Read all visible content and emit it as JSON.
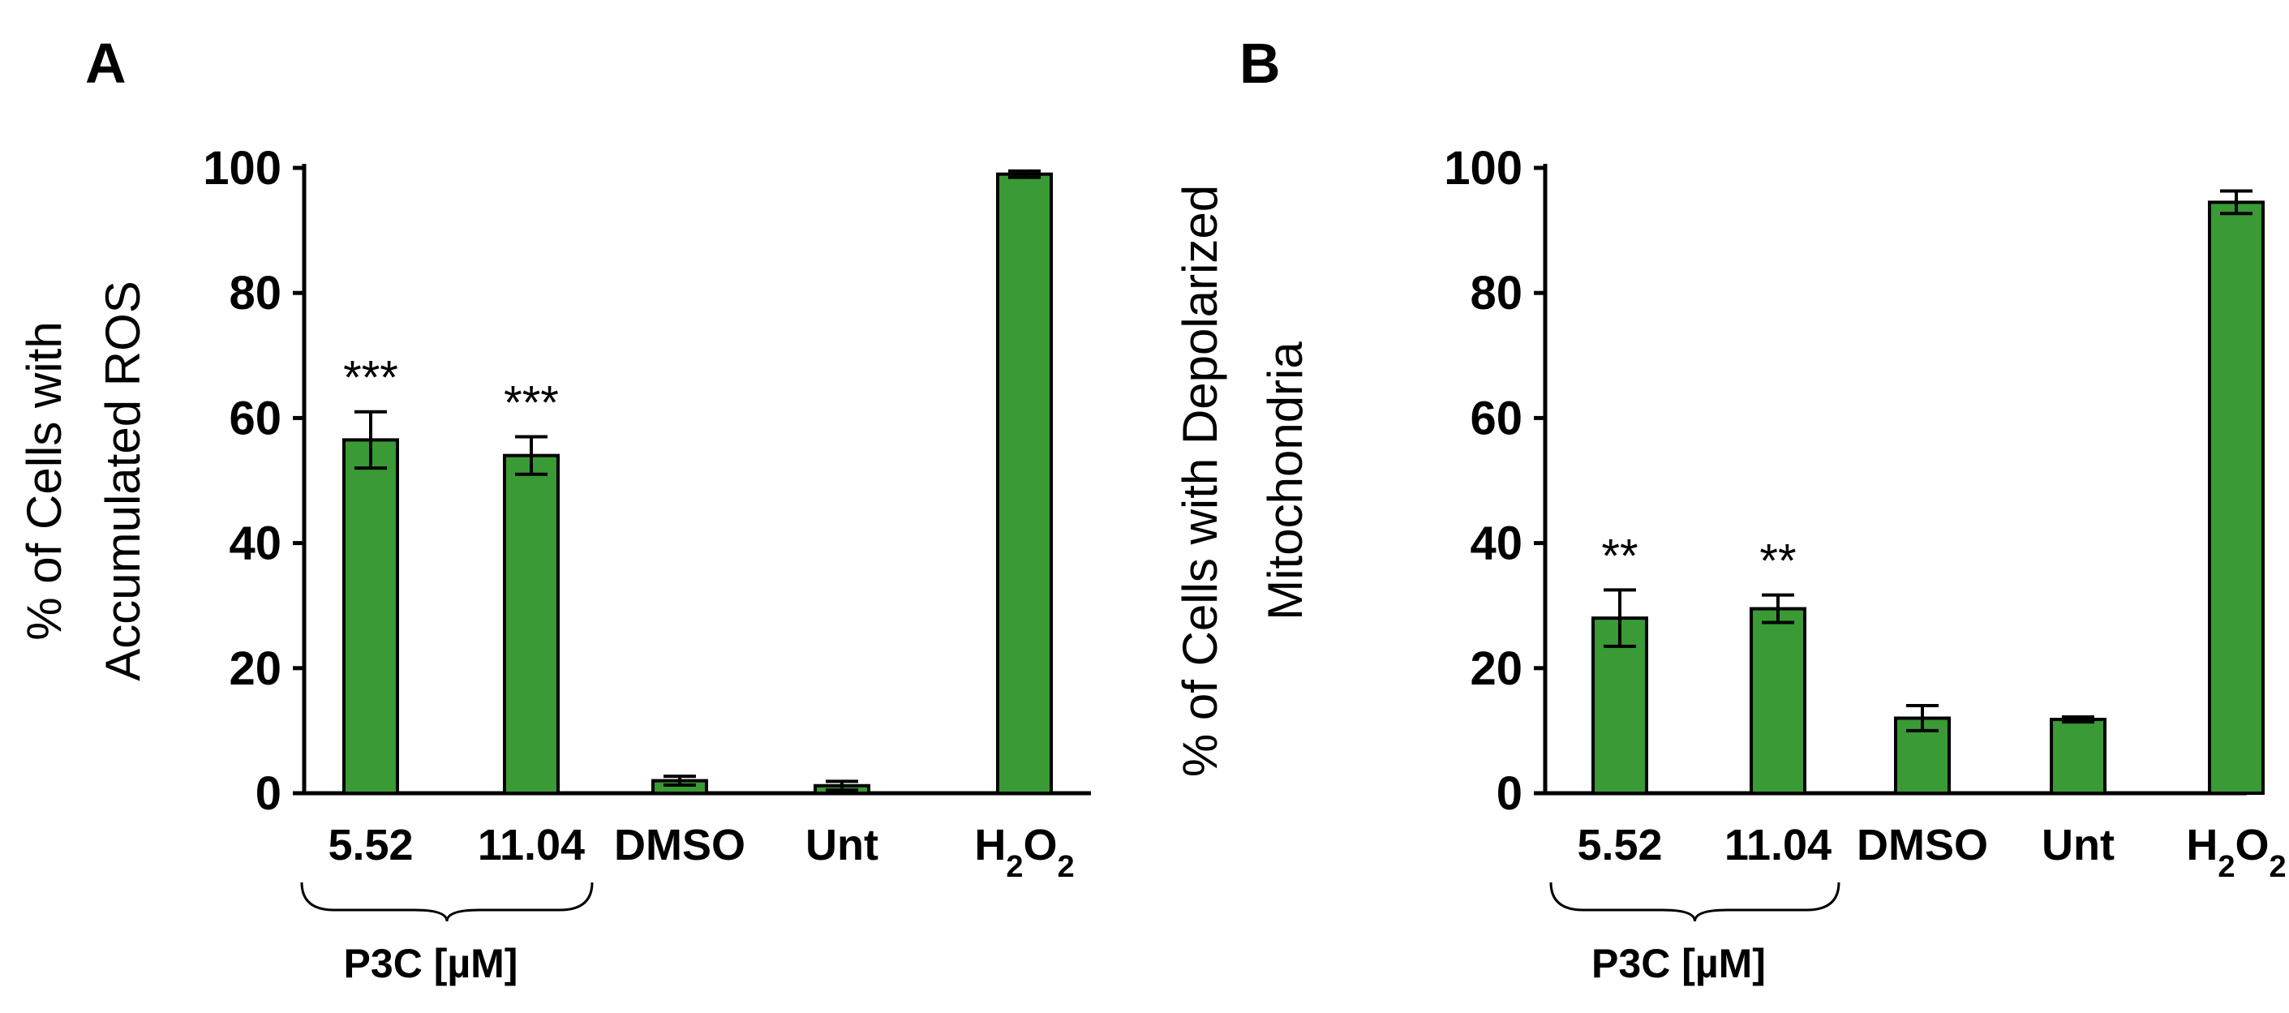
{
  "chart_data": [
    {
      "type": "bar",
      "panel": "A",
      "categories": [
        "5.52",
        "11.04",
        "DMSO",
        "Unt",
        "H2O2"
      ],
      "values": [
        56.5,
        54.0,
        2.0,
        1.2,
        99.0
      ],
      "errors": [
        4.5,
        3.0,
        0.7,
        0.7,
        0.5
      ],
      "annotations": [
        "***",
        "***",
        "",
        "",
        ""
      ],
      "ylabel_lines": [
        "% of Cells with",
        "Accumulated ROS"
      ],
      "ylim": [
        0,
        100
      ],
      "yticks": [
        "0",
        "20",
        "40",
        "60",
        "80",
        "100"
      ],
      "group": {
        "label": "P3C [µM]",
        "categories": [
          "5.52",
          "11.04"
        ]
      },
      "bar_color": "#3A9A35",
      "grid": false,
      "legend": "none"
    },
    {
      "type": "bar",
      "panel": "B",
      "categories": [
        "5.52",
        "11.04",
        "DMSO",
        "Unt",
        "H2O2"
      ],
      "values": [
        28.0,
        29.5,
        12.0,
        11.8,
        94.5
      ],
      "errors": [
        4.5,
        2.2,
        2.0,
        0.4,
        1.8
      ],
      "annotations": [
        "**",
        "**",
        "",
        "",
        ""
      ],
      "ylabel_lines": [
        "% of Cells with Depolarized",
        "Mitochondria"
      ],
      "ylim": [
        0,
        100
      ],
      "yticks": [
        "0",
        "20",
        "40",
        "60",
        "80",
        "100"
      ],
      "group": {
        "label": "P3C [µM]",
        "categories": [
          "5.52",
          "11.04"
        ]
      },
      "bar_color": "#3A9A35",
      "grid": false,
      "legend": "none"
    }
  ]
}
